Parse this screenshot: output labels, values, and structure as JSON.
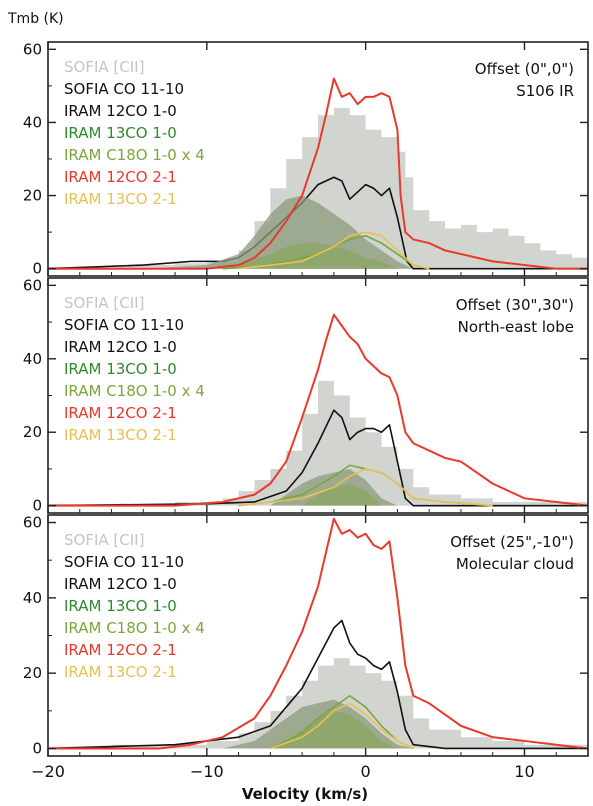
{
  "figure": {
    "ylabel": "Tmb (K)",
    "xlabel": "Velocity (km/s)",
    "colors": {
      "sofia_cii": "#c3c7bf",
      "sofia_co": "#111111",
      "cotwelve_one": "#111111",
      "cothirteen": "#2e8b2e",
      "ceighteen": "#7aa83a",
      "cotwelve_two": "#e83a2c",
      "cothirteen_two": "#e6c254"
    }
  },
  "chart_data": [
    {
      "type": "line",
      "title": "Offset (0\",0\")",
      "subtitle": "S106 IR",
      "ylim": [
        -2,
        62
      ],
      "xlim": [
        -20,
        14
      ],
      "yticks": [
        0,
        20,
        40,
        60
      ],
      "xticks": [
        -20,
        -10,
        0,
        10
      ],
      "legend": [
        "SOFIA [CII]",
        "SOFIA CO 11-10",
        "IRAM 12CO 1-0",
        "IRAM 13CO 1-0",
        "IRAM C18O 1-0 x 4",
        "IRAM 12CO 2-1",
        "IRAM 13CO 2-1"
      ],
      "series": [
        {
          "name": "SOFIA [CII]",
          "kind": "hist",
          "x": [
            -20,
            -16,
            -12,
            -10,
            -8,
            -7,
            -6,
            -5,
            -4,
            -3,
            -2,
            -1,
            0,
            1,
            2,
            2.5,
            3,
            4,
            5,
            6,
            7,
            8,
            9,
            10,
            11,
            12,
            13,
            14
          ],
          "y": [
            0.5,
            1,
            1.5,
            2,
            5,
            13,
            22,
            30,
            36,
            42,
            44,
            42,
            38,
            36,
            32,
            25,
            16,
            13,
            11,
            12,
            10,
            11,
            9,
            7,
            5,
            4,
            3,
            2
          ]
        },
        {
          "name": "SOFIA CO 11-10",
          "kind": "line",
          "x": [
            -20,
            -14,
            -11,
            -9,
            -8,
            -7,
            -6,
            -5,
            -4,
            -3,
            -2,
            -1.5,
            -1,
            -0.5,
            0,
            0.5,
            1,
            1.5,
            2,
            2.3,
            2.6,
            3,
            4,
            6,
            10,
            14
          ],
          "y": [
            0,
            1,
            2,
            2,
            3,
            6,
            10,
            14,
            18,
            23,
            25,
            24,
            19,
            21,
            23,
            22,
            20,
            22,
            14,
            8,
            2,
            0,
            0,
            0,
            0,
            0
          ]
        },
        {
          "name": "IRAM 12CO 1-0",
          "kind": "fill",
          "x": [
            -14,
            -10,
            -8,
            -7,
            -6,
            -5,
            -4,
            -3,
            -2,
            -1,
            0,
            1,
            2,
            3,
            5
          ],
          "y": [
            0,
            1,
            4,
            9,
            15,
            19,
            20,
            18,
            15,
            12,
            8,
            5,
            2,
            0,
            0
          ]
        },
        {
          "name": "IRAM 13CO 1-0",
          "kind": "fill",
          "x": [
            -10,
            -8,
            -6,
            -5,
            -4,
            -3,
            -2,
            -1,
            0,
            1,
            2,
            3
          ],
          "y": [
            0,
            1,
            4,
            6,
            7,
            7,
            6,
            5,
            3,
            2,
            0,
            0
          ]
        },
        {
          "name": "IRAM C18O 1-0 x 4",
          "kind": "line",
          "x": [
            -9,
            -7,
            -5,
            -3,
            -2,
            -1,
            0,
            1,
            2,
            3,
            4
          ],
          "y": [
            0,
            0.5,
            2,
            4,
            6,
            8,
            9,
            7,
            4,
            1,
            0
          ]
        },
        {
          "name": "IRAM 12CO 2-1",
          "kind": "line",
          "x": [
            -20,
            -14,
            -10,
            -8,
            -7,
            -6,
            -5,
            -4,
            -3,
            -2.5,
            -2,
            -1.5,
            -1,
            -0.5,
            0,
            0.5,
            1,
            1.5,
            2,
            2.2,
            2.5,
            3,
            4,
            5,
            6,
            8,
            10,
            12,
            14
          ],
          "y": [
            0,
            0,
            0,
            1,
            3,
            7,
            13,
            20,
            33,
            42,
            52,
            47,
            48,
            45,
            47,
            47,
            48,
            47,
            38,
            20,
            10,
            8,
            7,
            5,
            4,
            2,
            1,
            0,
            0
          ]
        },
        {
          "name": "IRAM 13CO 2-1",
          "kind": "line",
          "x": [
            -8,
            -6,
            -4,
            -3,
            -2,
            -1,
            0,
            1,
            2,
            3,
            4
          ],
          "y": [
            0,
            1,
            2,
            4,
            6,
            9,
            10,
            9,
            5,
            1,
            0
          ]
        }
      ]
    },
    {
      "type": "line",
      "title": "Offset (30\",30\")",
      "subtitle": "North-east lobe",
      "ylim": [
        -2,
        62
      ],
      "xlim": [
        -20,
        14
      ],
      "yticks": [
        0,
        20,
        40,
        60
      ],
      "xticks": [
        -20,
        -10,
        0,
        10
      ],
      "legend": [
        "SOFIA [CII]",
        "SOFIA CO 11-10",
        "IRAM 12CO 1-0",
        "IRAM 13CO 1-0",
        "IRAM C18O 1-0 x 4",
        "IRAM 12CO 2-1",
        "IRAM 13CO 2-1"
      ],
      "series": [
        {
          "name": "SOFIA [CII]",
          "kind": "hist",
          "x": [
            -20,
            -16,
            -12,
            -10,
            -9,
            -8,
            -7,
            -6,
            -5,
            -4,
            -3,
            -2,
            -1,
            0,
            1,
            2,
            3,
            4,
            6,
            8,
            10,
            14
          ],
          "y": [
            0.5,
            0.5,
            1,
            1,
            2,
            4,
            7,
            10,
            15,
            25,
            34,
            30,
            24,
            20,
            16,
            10,
            5,
            3,
            2,
            1,
            1,
            0
          ]
        },
        {
          "name": "SOFIA CO 11-10",
          "kind": "line",
          "x": [
            -20,
            -10,
            -7,
            -5,
            -4,
            -3,
            -2,
            -1.5,
            -1,
            -0.5,
            0,
            0.5,
            1,
            1.5,
            2,
            2.5,
            3,
            5,
            14
          ],
          "y": [
            0,
            0.5,
            1,
            4,
            9,
            17,
            26,
            24,
            18,
            20,
            21,
            21,
            20,
            22,
            12,
            2,
            0,
            0,
            0
          ]
        },
        {
          "name": "IRAM 12CO 1-0",
          "kind": "fill",
          "x": [
            -6,
            -5,
            -4,
            -3,
            -2,
            -1,
            0,
            1,
            2
          ],
          "y": [
            0,
            3,
            6,
            8,
            9,
            10,
            7,
            2,
            0
          ]
        },
        {
          "name": "IRAM 13CO 1-0",
          "kind": "fill",
          "x": [
            -4,
            -3,
            -2,
            -1,
            0,
            1
          ],
          "y": [
            0,
            3,
            5,
            6,
            4,
            0
          ]
        },
        {
          "name": "IRAM C18O 1-0 x 4",
          "kind": "line",
          "x": [
            -8,
            -6,
            -4,
            -2,
            -1,
            0,
            1,
            2,
            3,
            5,
            8
          ],
          "y": [
            0,
            1,
            3,
            8,
            11,
            10,
            9,
            6,
            2,
            1,
            0
          ]
        },
        {
          "name": "IRAM 12CO 2-1",
          "kind": "line",
          "x": [
            -20,
            -12,
            -9,
            -7,
            -6,
            -5,
            -4,
            -3,
            -2.5,
            -2,
            -1.5,
            -1,
            -0.5,
            0,
            0.5,
            1,
            1.5,
            2,
            2.5,
            3,
            4,
            5,
            6,
            8,
            10,
            14
          ],
          "y": [
            0,
            0,
            1,
            3,
            6,
            12,
            24,
            37,
            45,
            52,
            49,
            46,
            44,
            40,
            38,
            36,
            35,
            30,
            20,
            17,
            15,
            13,
            12,
            6,
            2,
            0
          ]
        },
        {
          "name": "IRAM 13CO 2-1",
          "kind": "line",
          "x": [
            -8,
            -6,
            -4,
            -2,
            -1,
            0,
            1,
            2,
            3,
            5,
            8
          ],
          "y": [
            0,
            1,
            2,
            5,
            8,
            10,
            9,
            6,
            2,
            1,
            0
          ]
        }
      ]
    },
    {
      "type": "line",
      "title": "Offset (25\",-10\")",
      "subtitle": "Molecular cloud",
      "ylim": [
        -2,
        62
      ],
      "xlim": [
        -20,
        14
      ],
      "yticks": [
        0,
        20,
        40,
        60
      ],
      "xticks": [
        -20,
        -10,
        0,
        10
      ],
      "legend": [
        "SOFIA [CII]",
        "SOFIA CO 11-10",
        "IRAM 12CO 1-0",
        "IRAM 13CO 1-0",
        "IRAM C18O 1-0 x 4",
        "IRAM 12CO 2-1",
        "IRAM 13CO 2-1"
      ],
      "series": [
        {
          "name": "SOFIA [CII]",
          "kind": "hist",
          "x": [
            -20,
            -16,
            -12,
            -10,
            -8,
            -7,
            -6,
            -5,
            -4,
            -3,
            -2,
            -1,
            0,
            1,
            2,
            3,
            4,
            6,
            8,
            10,
            12,
            14
          ],
          "y": [
            0.5,
            1,
            1,
            2,
            4,
            7,
            10,
            14,
            18,
            22,
            24,
            22,
            20,
            18,
            14,
            8,
            5,
            3,
            2,
            1,
            1,
            0
          ]
        },
        {
          "name": "SOFIA CO 11-10",
          "kind": "line",
          "x": [
            -20,
            -12,
            -10,
            -8,
            -6,
            -5,
            -4,
            -3,
            -2,
            -1.5,
            -1,
            -0.5,
            0,
            0.5,
            1,
            1.5,
            2,
            2.5,
            3,
            5,
            14
          ],
          "y": [
            0,
            1,
            2,
            3,
            6,
            11,
            16,
            24,
            32,
            34,
            28,
            25,
            24,
            22,
            21,
            23,
            15,
            5,
            1,
            0,
            0
          ]
        },
        {
          "name": "IRAM 12CO 1-0",
          "kind": "fill",
          "x": [
            -9,
            -7,
            -6,
            -5,
            -4,
            -3,
            -2,
            -1,
            0,
            1,
            2,
            3
          ],
          "y": [
            0,
            2,
            5,
            8,
            11,
            12,
            13,
            11,
            8,
            4,
            1,
            0
          ]
        },
        {
          "name": "IRAM 13CO 1-0",
          "kind": "fill",
          "x": [
            -6,
            -5,
            -4,
            -3,
            -2,
            -1,
            0,
            1,
            2
          ],
          "y": [
            0,
            2,
            5,
            8,
            10,
            9,
            6,
            2,
            0
          ]
        },
        {
          "name": "IRAM C18O 1-0 x 4",
          "kind": "line",
          "x": [
            -6,
            -4,
            -3,
            -2,
            -1,
            0,
            1,
            2,
            3
          ],
          "y": [
            0,
            4,
            8,
            11,
            14,
            11,
            6,
            2,
            0
          ]
        },
        {
          "name": "IRAM 12CO 2-1",
          "kind": "line",
          "x": [
            -20,
            -13,
            -11,
            -9,
            -7,
            -6,
            -5,
            -4,
            -3,
            -2.5,
            -2,
            -1.5,
            -1,
            -0.5,
            0,
            0.5,
            1,
            1.5,
            2,
            2.5,
            3,
            4,
            5,
            6,
            8,
            10,
            12,
            14
          ],
          "y": [
            0,
            0,
            1,
            3,
            8,
            14,
            22,
            31,
            43,
            52,
            61,
            57,
            58,
            56,
            57,
            54,
            53,
            55,
            40,
            22,
            14,
            12,
            9,
            6,
            3,
            2,
            1,
            0
          ]
        },
        {
          "name": "IRAM 13CO 2-1",
          "kind": "line",
          "x": [
            -6,
            -4,
            -3,
            -2,
            -1,
            0,
            1,
            2,
            3
          ],
          "y": [
            0,
            3,
            6,
            10,
            12,
            9,
            5,
            2,
            0
          ]
        }
      ]
    }
  ]
}
